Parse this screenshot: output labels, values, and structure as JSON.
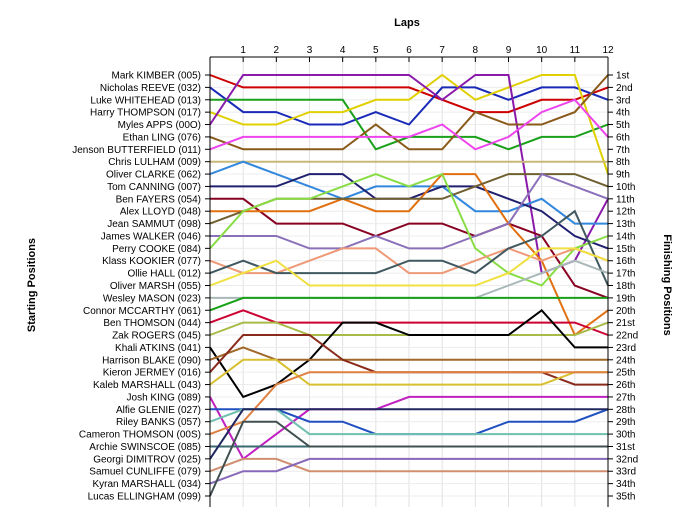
{
  "chart_data": {
    "type": "line",
    "title": "",
    "xlabel": "Laps",
    "ylabel_left": "Starting Positions",
    "ylabel_right": "Finishing Positions",
    "x": [
      0,
      1,
      2,
      3,
      4,
      5,
      6,
      7,
      8,
      9,
      10,
      11,
      12
    ],
    "x_tick_labels": [
      "1",
      "2",
      "3",
      "4",
      "5",
      "6",
      "7",
      "8",
      "9",
      "10",
      "11",
      "12"
    ],
    "ylim": [
      1,
      35
    ],
    "grid": true,
    "finishing_labels": [
      "1st",
      "2nd",
      "3rd",
      "4th",
      "5th",
      "6th",
      "7th",
      "8th",
      "9th",
      "10th",
      "11th",
      "12th",
      "13th",
      "14th",
      "15th",
      "16th",
      "17th",
      "18th",
      "19th",
      "20th",
      "21st",
      "22nd",
      "23rd",
      "24th",
      "25th",
      "26th",
      "27th",
      "28th",
      "29th",
      "30th",
      "31st",
      "32nd",
      "33rd",
      "34th",
      "35th"
    ],
    "series": [
      {
        "name": "Mark KIMBER (005)",
        "color": "#cc0000",
        "values": [
          1,
          2,
          2,
          2,
          2,
          2,
          2,
          3,
          4,
          4,
          3,
          3,
          2
        ]
      },
      {
        "name": "Nicholas REEVE (032)",
        "color": "#1a2ab8",
        "values": [
          2,
          4,
          4,
          5,
          5,
          4,
          5,
          2,
          2,
          3,
          2,
          2,
          3
        ]
      },
      {
        "name": "Luke WHITEHEAD (013)",
        "color": "#1aa01a",
        "values": [
          3,
          3,
          3,
          3,
          3,
          7,
          6,
          6,
          6,
          7,
          6,
          6,
          5
        ]
      },
      {
        "name": "Harry THOMPSON (017)",
        "color": "#e0d000",
        "values": [
          4,
          5,
          5,
          4,
          4,
          3,
          3,
          1,
          3,
          2,
          1,
          1,
          9
        ]
      },
      {
        "name": "Myles APPS (00O)",
        "color": "#8a1aaa",
        "values": [
          5,
          1,
          1,
          1,
          1,
          1,
          1,
          3,
          1,
          1,
          17,
          16,
          11
        ]
      },
      {
        "name": "Ethan LING (076)",
        "color": "#8a5a1a",
        "values": [
          6,
          7,
          7,
          7,
          7,
          5,
          7,
          7,
          4,
          5,
          5,
          4,
          1
        ]
      },
      {
        "name": "Jenson BUTTERFIELD (011)",
        "color": "#ee44ee",
        "values": [
          7,
          6,
          6,
          6,
          6,
          6,
          6,
          5,
          7,
          6,
          4,
          3,
          6
        ]
      },
      {
        "name": "Chris LULHAM (009)",
        "color": "#c8b878",
        "values": [
          8,
          8,
          8,
          8,
          8,
          8,
          8,
          8,
          8,
          8,
          8,
          8,
          8
        ]
      },
      {
        "name": "Oliver CLARKE (062)",
        "color": "#3388dd",
        "values": [
          9,
          8,
          9,
          10,
          11,
          10,
          10,
          10,
          12,
          12,
          11,
          13,
          13
        ]
      },
      {
        "name": "Tom CANNING (007)",
        "color": "#202070",
        "values": [
          10,
          10,
          10,
          9,
          9,
          11,
          11,
          10,
          10,
          11,
          12,
          14,
          15
        ]
      },
      {
        "name": "Ben FAYERS (054)",
        "color": "#880022",
        "values": [
          11,
          11,
          13,
          13,
          13,
          14,
          13,
          13,
          14,
          13,
          14,
          18,
          19
        ]
      },
      {
        "name": "Alex LLOYD (048)",
        "color": "#e07010",
        "values": [
          12,
          12,
          12,
          12,
          11,
          12,
          12,
          9,
          9,
          13,
          16,
          22,
          20
        ]
      },
      {
        "name": "Jean SAMMUT (098)",
        "color": "#706030",
        "values": [
          13,
          12,
          11,
          11,
          11,
          11,
          11,
          11,
          10,
          9,
          9,
          9,
          10
        ]
      },
      {
        "name": "James WALKER (046)",
        "color": "#8a70b8",
        "values": [
          14,
          14,
          14,
          15,
          15,
          14,
          15,
          15,
          14,
          13,
          9,
          10,
          11
        ]
      },
      {
        "name": "Perry COOKE (084)",
        "color": "#88dd44",
        "values": [
          15,
          12,
          11,
          11,
          10,
          9,
          10,
          9,
          15,
          17,
          18,
          15,
          14
        ]
      },
      {
        "name": "Klass KOOKIER (077)",
        "color": "#ee9977",
        "values": [
          16,
          17,
          17,
          16,
          15,
          15,
          17,
          17,
          16,
          15,
          16,
          15,
          16
        ]
      },
      {
        "name": "Ollie HALL (012)",
        "color": "#405860",
        "values": [
          17,
          16,
          17,
          17,
          17,
          17,
          16,
          16,
          17,
          15,
          14,
          12,
          18
        ]
      },
      {
        "name": "Oliver MARSH (055)",
        "color": "#f0e040",
        "values": [
          18,
          17,
          16,
          18,
          18,
          18,
          18,
          18,
          18,
          17,
          15,
          15,
          16
        ]
      },
      {
        "name": "Wesley MASON (023)",
        "color": "#a8b8b8",
        "values": [
          19,
          19,
          19,
          19,
          19,
          19,
          19,
          19,
          19,
          18,
          17,
          16,
          17
        ]
      },
      {
        "name": "Connor MCCARTHY (061)",
        "color": "#18a018",
        "values": [
          20,
          19,
          19,
          19,
          19,
          19,
          19,
          19,
          19,
          19,
          19,
          19,
          19
        ]
      },
      {
        "name": "Ben THOMSON (044)",
        "color": "#cc0033",
        "values": [
          21,
          20,
          21,
          21,
          21,
          21,
          21,
          21,
          21,
          21,
          21,
          21,
          22
        ]
      },
      {
        "name": "Zak ROGERS (045)",
        "color": "#a8ba48",
        "values": [
          22,
          21,
          21,
          22,
          22,
          22,
          22,
          22,
          22,
          22,
          22,
          22,
          21
        ]
      },
      {
        "name": "Khali ATKINS (041)",
        "color": "#000000",
        "values": [
          23,
          27,
          26,
          24,
          21,
          21,
          22,
          22,
          22,
          22,
          20,
          23,
          23
        ]
      },
      {
        "name": "Harrison BLAKE (090)",
        "color": "#a06828",
        "values": [
          24,
          23,
          24,
          24,
          24,
          24,
          24,
          24,
          24,
          24,
          24,
          24,
          24
        ]
      },
      {
        "name": "Kieron JERMEY (016)",
        "color": "#8a2a1a",
        "values": [
          25,
          22,
          22,
          22,
          24,
          25,
          25,
          25,
          25,
          25,
          25,
          26,
          26
        ]
      },
      {
        "name": "Kaleb MARSHALL (043)",
        "color": "#d8c030",
        "values": [
          26,
          24,
          24,
          26,
          26,
          26,
          26,
          26,
          26,
          26,
          26,
          25,
          25
        ]
      },
      {
        "name": "Josh KING (089)",
        "color": "#c020c0",
        "values": [
          27,
          32,
          30,
          28,
          28,
          28,
          27,
          27,
          27,
          27,
          27,
          27,
          27
        ]
      },
      {
        "name": "Alfie GLENIE (027)",
        "color": "#2050c0",
        "values": [
          28,
          28,
          28,
          29,
          29,
          30,
          30,
          30,
          30,
          29,
          29,
          29,
          28
        ]
      },
      {
        "name": "Riley BANKS (057)",
        "color": "#70c0b0",
        "values": [
          29,
          28,
          28,
          30,
          30,
          30,
          30,
          30,
          30,
          30,
          30,
          30,
          30
        ]
      },
      {
        "name": "Cameron THOMSON (00S)",
        "color": "#e08040",
        "values": [
          30,
          29,
          26,
          25,
          25,
          25,
          25,
          25,
          25,
          25,
          25,
          25,
          25
        ]
      },
      {
        "name": "Archie SWINSCOE (085)",
        "color": "#3a6a70",
        "values": [
          31,
          31,
          31,
          31,
          31,
          31,
          31,
          31,
          31,
          31,
          31,
          31,
          31
        ]
      },
      {
        "name": "Georgi DIMITROV (025)",
        "color": "#202860",
        "values": [
          32,
          28,
          28,
          28,
          28,
          28,
          28,
          28,
          28,
          28,
          28,
          28,
          28
        ]
      },
      {
        "name": "Samuel CUNLIFFE (079)",
        "color": "#d09070",
        "values": [
          33,
          32,
          32,
          33,
          33,
          33,
          33,
          33,
          33,
          33,
          33,
          33,
          33
        ]
      },
      {
        "name": "Kyran MARSHALL (034)",
        "color": "#8868b8",
        "values": [
          34,
          33,
          33,
          32,
          32,
          32,
          32,
          32,
          32,
          32,
          32,
          32,
          32
        ]
      },
      {
        "name": "Lucas ELLINGHAM (099)",
        "color": "#405050",
        "values": [
          35,
          29,
          29,
          31,
          31,
          31,
          31,
          31,
          31,
          31,
          31,
          31,
          31
        ]
      }
    ]
  }
}
